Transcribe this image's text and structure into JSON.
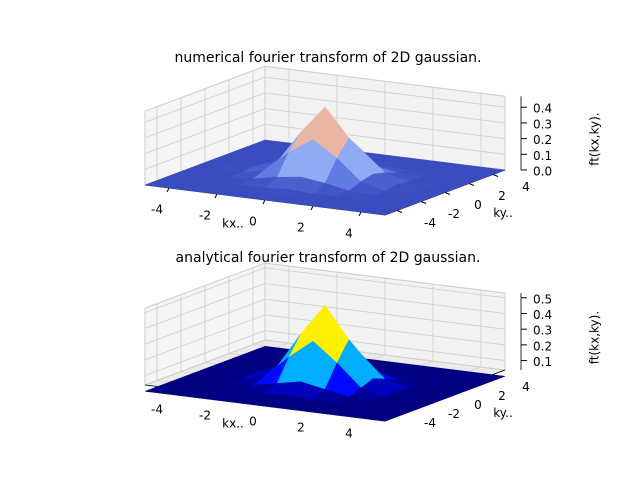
{
  "chart_data": [
    {
      "type": "surface",
      "title": "numerical fourier transform of 2D gaussian.",
      "xlabel": "kx..",
      "ylabel": "ky..",
      "zlabel": "ft(kx,ky).",
      "colormap": "coolwarm",
      "x": [
        -5,
        -4,
        -3,
        -2,
        -1,
        0,
        1,
        2,
        3,
        4,
        5
      ],
      "y": [
        -5,
        -4,
        -3,
        -2,
        -1,
        0,
        1,
        2,
        3,
        4,
        5
      ],
      "z": [
        [
          0,
          0,
          0,
          0,
          0,
          0,
          0,
          0,
          0,
          0,
          0
        ],
        [
          0,
          0,
          0,
          0,
          0,
          0,
          0,
          0,
          0,
          0,
          0
        ],
        [
          0,
          0,
          0,
          0,
          0,
          0.01,
          0,
          0,
          0,
          0,
          0
        ],
        [
          0,
          0,
          0,
          0.01,
          0.04,
          0.06,
          0.04,
          0.01,
          0,
          0,
          0
        ],
        [
          0,
          0,
          0,
          0.04,
          0.17,
          0.27,
          0.17,
          0.04,
          0,
          0,
          0
        ],
        [
          0,
          0,
          0.01,
          0.06,
          0.27,
          0.45,
          0.27,
          0.06,
          0.01,
          0,
          0
        ],
        [
          0,
          0,
          0,
          0.04,
          0.17,
          0.27,
          0.17,
          0.04,
          0,
          0,
          0
        ],
        [
          0,
          0,
          0,
          0.01,
          0.04,
          0.06,
          0.04,
          0.01,
          0,
          0,
          0
        ],
        [
          0,
          0,
          0,
          0,
          0,
          0.01,
          0,
          0,
          0,
          0,
          0
        ],
        [
          0,
          0,
          0,
          0,
          0,
          0,
          0,
          0,
          0,
          0,
          0
        ],
        [
          0,
          0,
          0,
          0,
          0,
          0,
          0,
          0,
          0,
          0,
          0
        ]
      ],
      "xlim": [
        -5,
        5
      ],
      "ylim": [
        -5,
        5
      ],
      "zlim": [
        0,
        0.47
      ],
      "xticks": [
        -4,
        -2,
        0,
        2,
        4
      ],
      "yticks": [
        -4,
        -2,
        0,
        2,
        4
      ],
      "zticks": [
        {
          "value": 0,
          "label": "0.0"
        },
        0.1,
        0.2,
        0.3,
        0.4
      ],
      "grid": true
    },
    {
      "type": "surface",
      "title": "analytical fourier transform of 2D gaussian.",
      "xlabel": "kx..",
      "ylabel": "ky..",
      "zlabel": "ft(kx,ky).",
      "colormap": "jet",
      "x": [
        -5,
        -4,
        -3,
        -2,
        -1,
        0,
        1,
        2,
        3,
        4,
        5
      ],
      "y": [
        -5,
        -4,
        -3,
        -2,
        -1,
        0,
        1,
        2,
        3,
        4,
        5
      ],
      "z": [
        [
          0,
          0,
          0,
          0,
          0,
          0,
          0,
          0,
          0,
          0,
          0
        ],
        [
          0,
          0,
          0,
          0,
          0,
          0,
          0,
          0,
          0,
          0,
          0
        ],
        [
          0,
          0,
          0,
          0,
          0,
          0.01,
          0,
          0,
          0,
          0,
          0
        ],
        [
          0,
          0,
          0,
          0.01,
          0.04,
          0.07,
          0.04,
          0.01,
          0,
          0,
          0
        ],
        [
          0,
          0,
          0,
          0.04,
          0.18,
          0.3,
          0.18,
          0.04,
          0,
          0,
          0
        ],
        [
          0,
          0,
          0.01,
          0.07,
          0.3,
          0.5,
          0.3,
          0.07,
          0.01,
          0,
          0
        ],
        [
          0,
          0,
          0,
          0.04,
          0.18,
          0.3,
          0.18,
          0.04,
          0,
          0,
          0
        ],
        [
          0,
          0,
          0,
          0.01,
          0.04,
          0.07,
          0.04,
          0.01,
          0,
          0,
          0
        ],
        [
          0,
          0,
          0,
          0,
          0,
          0.01,
          0,
          0,
          0,
          0,
          0
        ],
        [
          0,
          0,
          0,
          0,
          0,
          0,
          0,
          0,
          0,
          0,
          0
        ],
        [
          0,
          0,
          0,
          0,
          0,
          0,
          0,
          0,
          0,
          0,
          0
        ]
      ],
      "xlim": [
        -5,
        5
      ],
      "ylim": [
        -5,
        5
      ],
      "zlim": [
        0.04,
        0.53
      ],
      "xticks": [
        -4,
        -2,
        0,
        2,
        4
      ],
      "yticks": [
        -4,
        -2,
        0,
        2,
        4
      ],
      "zticks": [
        0.1,
        0.2,
        0.3,
        0.4,
        0.5
      ],
      "grid": true
    }
  ]
}
